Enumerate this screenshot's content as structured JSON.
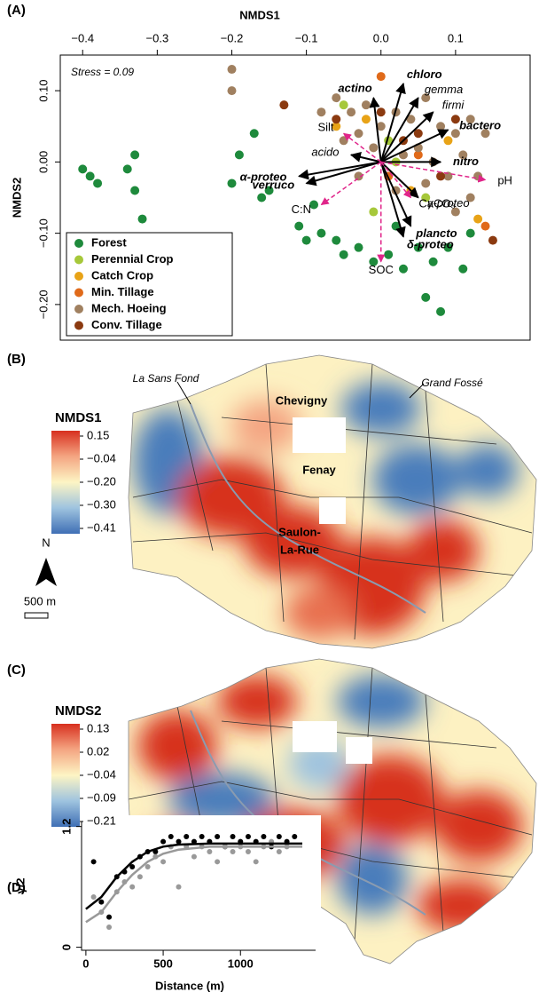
{
  "chart_data": [
    {
      "type": "scatter",
      "panel": "(A)",
      "xlabel": "NMDS1",
      "ylabel": "NMDS2",
      "annotation": "Stress = 0.09",
      "xlim": [
        -0.43,
        0.2
      ],
      "ylim": [
        -0.25,
        0.15
      ],
      "xticks": [
        {
          "value": -0.4,
          "label": "−0.4"
        },
        {
          "value": -0.3,
          "label": "−0.3"
        },
        {
          "value": -0.2,
          "label": "−0.2"
        },
        {
          "value": -0.1,
          "label": "−0.1"
        },
        {
          "value": 0,
          "label": "0.0"
        },
        {
          "value": 0.1,
          "label": "0.1"
        }
      ],
      "yticks": [
        {
          "value": 0.1,
          "label": "0.10"
        },
        {
          "value": 0,
          "label": "0.00"
        },
        {
          "value": -0.1,
          "label": "−0.10"
        },
        {
          "value": -0.2,
          "label": "−0.20"
        }
      ],
      "legend": "bottom-left",
      "series": [
        {
          "name": "Forest",
          "color": "#1e8a3c",
          "x": [
            -0.4,
            -0.39,
            -0.38,
            -0.34,
            -0.33,
            -0.33,
            -0.32,
            -0.2,
            -0.19,
            -0.17,
            -0.16,
            -0.15,
            -0.11,
            -0.09,
            -0.08,
            -0.06,
            -0.05,
            -0.03,
            -0.01,
            0.01,
            0.03,
            0.05,
            0.07,
            0.09,
            0.11,
            0.12,
            0.06,
            0.08,
            -0.1,
            0.02
          ],
          "y": [
            -0.01,
            -0.02,
            -0.03,
            -0.01,
            0.01,
            -0.04,
            -0.08,
            -0.03,
            0.01,
            0.04,
            -0.05,
            -0.04,
            -0.09,
            -0.06,
            -0.1,
            -0.11,
            -0.13,
            -0.12,
            -0.14,
            -0.13,
            -0.15,
            -0.12,
            -0.14,
            -0.12,
            -0.15,
            -0.1,
            -0.19,
            -0.21,
            -0.11,
            -0.09
          ]
        },
        {
          "name": "Perennial Crop",
          "color": "#a6c83a",
          "x": [
            -0.05,
            0.01,
            0.06,
            -0.01,
            0.02
          ],
          "y": [
            0.08,
            0.03,
            -0.05,
            -0.07,
            0.0
          ]
        },
        {
          "name": "Catch Crop",
          "color": "#e8a317",
          "x": [
            -0.02,
            0.04,
            0.13,
            -0.06,
            0.09
          ],
          "y": [
            0.06,
            -0.04,
            -0.08,
            0.05,
            0.03
          ]
        },
        {
          "name": "Min. Tillage",
          "color": "#e06a1a",
          "x": [
            0.0,
            0.01,
            0.05,
            0.14
          ],
          "y": [
            0.12,
            -0.02,
            0.01,
            -0.09
          ]
        },
        {
          "name": "Mech. Hoeing",
          "color": "#a08060",
          "x": [
            -0.2,
            -0.2,
            -0.08,
            -0.06,
            -0.04,
            -0.03,
            -0.02,
            0.0,
            0.02,
            0.04,
            0.06,
            0.08,
            0.1,
            0.12,
            0.14,
            0.05,
            0.03,
            -0.01,
            0.07,
            0.09,
            0.11,
            0.13,
            -0.05,
            0.06,
            0.1,
            0.12,
            0.02,
            -0.03
          ],
          "y": [
            0.13,
            0.1,
            0.07,
            0.09,
            0.07,
            0.04,
            0.08,
            0.05,
            0.07,
            0.06,
            0.09,
            0.05,
            0.04,
            0.06,
            0.04,
            0.02,
            0.01,
            0.02,
            0.0,
            -0.02,
            0.01,
            -0.02,
            0.03,
            -0.03,
            -0.07,
            -0.05,
            -0.04,
            -0.02
          ]
        },
        {
          "name": "Conv. Tillage",
          "color": "#8b3a10",
          "x": [
            -0.13,
            -0.06,
            0.0,
            0.05,
            0.1,
            0.08,
            0.15,
            0.03
          ],
          "y": [
            0.08,
            0.06,
            0.07,
            0.04,
            0.06,
            -0.02,
            -0.11,
            0.03
          ]
        }
      ],
      "vectors": [
        {
          "label": "chloro",
          "x": 0.03,
          "y": 0.11,
          "color": "#000000",
          "style": "solid",
          "bold": true
        },
        {
          "label": "actino",
          "x": -0.01,
          "y": 0.09,
          "color": "#000000",
          "style": "solid",
          "bold": true
        },
        {
          "label": "gemma",
          "x": 0.05,
          "y": 0.09,
          "color": "#000000",
          "style": "solid",
          "bold": false
        },
        {
          "label": "firmi",
          "x": 0.07,
          "y": 0.07,
          "color": "#000000",
          "style": "solid",
          "bold": false
        },
        {
          "label": "bactero",
          "x": 0.09,
          "y": 0.045,
          "color": "#000000",
          "style": "solid",
          "bold": true
        },
        {
          "label": "nitro",
          "x": 0.08,
          "y": 0.0,
          "color": "#000000",
          "style": "solid",
          "bold": true
        },
        {
          "label": "acido",
          "x": -0.04,
          "y": 0.01,
          "color": "#000000",
          "style": "solid",
          "bold": false
        },
        {
          "label": "α-proteo",
          "x": -0.11,
          "y": -0.02,
          "color": "#000000",
          "style": "solid",
          "bold": true
        },
        {
          "label": "verruco",
          "x": -0.1,
          "y": -0.03,
          "color": "#000000",
          "style": "solid",
          "bold": true
        },
        {
          "label": "γ-proteo",
          "x": 0.05,
          "y": -0.05,
          "color": "#000000",
          "style": "solid",
          "bold": false
        },
        {
          "label": "plancto",
          "x": 0.04,
          "y": -0.09,
          "color": "#000000",
          "style": "solid",
          "bold": true
        },
        {
          "label": "δ-proteo",
          "x": 0.03,
          "y": -0.105,
          "color": "#000000",
          "style": "solid",
          "bold": true
        },
        {
          "label": "Silt",
          "x": -0.05,
          "y": 0.04,
          "color": "#e0258a",
          "style": "dashed",
          "bold": false
        },
        {
          "label": "pH",
          "x": 0.14,
          "y": -0.025,
          "color": "#e0258a",
          "style": "dashed",
          "bold": false
        },
        {
          "label": "C:N",
          "x": -0.08,
          "y": -0.06,
          "color": "#e0258a",
          "style": "dashed",
          "bold": false
        },
        {
          "label": "SOC",
          "x": 0.0,
          "y": -0.14,
          "color": "#e0258a",
          "style": "dashed",
          "bold": false
        },
        {
          "label": "CaCO₃",
          "x": 0.04,
          "y": -0.05,
          "color": "#e0258a",
          "style": "dashed",
          "bold": false
        }
      ]
    },
    {
      "type": "map",
      "panel": "(B)",
      "title": "NMDS1",
      "colors": [
        "#d7301f",
        "#f4a582",
        "#fdf5c4",
        "#9ec3df",
        "#3f6fb5"
      ],
      "ticks": [
        {
          "value": 0.15,
          "label": "0.15"
        },
        {
          "value": -0.04,
          "label": "−0.04"
        },
        {
          "value": -0.2,
          "label": "−0.20"
        },
        {
          "value": -0.3,
          "label": "−0.30"
        },
        {
          "value": -0.41,
          "label": "−0.41"
        }
      ],
      "places": [
        "La Sans Fond",
        "Grand Fossé",
        "Chevigny",
        "Fenay",
        "Saulon-",
        "La-Rue"
      ],
      "north": "N",
      "scale": "500 m"
    },
    {
      "type": "map",
      "panel": "(C)",
      "title": "NMDS2",
      "colors": [
        "#d7301f",
        "#f4a582",
        "#fdf5c4",
        "#9ec3df",
        "#3f6fb5"
      ],
      "ticks": [
        {
          "value": 0.13,
          "label": "0.13"
        },
        {
          "value": 0.02,
          "label": "0.02"
        },
        {
          "value": -0.04,
          "label": "−0.04"
        },
        {
          "value": -0.09,
          "label": "−0.09"
        },
        {
          "value": -0.21,
          "label": "−0.21"
        }
      ]
    },
    {
      "type": "variogram",
      "panel": "(D)",
      "xlabel": "Distance (m)",
      "ylabel": "γ/2",
      "xlim": [
        -28,
        1486
      ],
      "ylim": [
        -0.03,
        1.25
      ],
      "xticks": [
        0,
        500,
        1000
      ],
      "yticks": [
        0,
        1.2
      ],
      "series": [
        {
          "color": "#000000",
          "style": "points",
          "x": [
            50,
            100,
            150,
            200,
            250,
            300,
            350,
            400,
            450,
            500,
            550,
            600,
            650,
            700,
            750,
            800,
            850,
            900,
            950,
            1000,
            1050,
            1100,
            1150,
            1200,
            1250,
            1300,
            1350
          ],
          "values": [
            0.85,
            0.45,
            0.3,
            0.7,
            0.75,
            0.8,
            0.9,
            0.95,
            0.95,
            1.05,
            1.1,
            1.05,
            1.1,
            1.05,
            1.1,
            1.05,
            1.1,
            1.0,
            1.1,
            1.05,
            1.1,
            1.05,
            1.1,
            1.0,
            1.1,
            1.05,
            1.1
          ]
        },
        {
          "color": "#999999",
          "style": "points",
          "x": [
            50,
            100,
            150,
            200,
            250,
            300,
            350,
            400,
            450,
            500,
            550,
            600,
            650,
            700,
            750,
            800,
            850,
            900,
            950,
            1000,
            1050,
            1100,
            1150,
            1200,
            1250,
            1300
          ],
          "values": [
            0.5,
            0.35,
            0.2,
            0.55,
            0.65,
            0.6,
            0.7,
            0.8,
            0.9,
            0.85,
            1.0,
            0.6,
            1.0,
            0.9,
            1.0,
            0.95,
            0.85,
            1.0,
            0.95,
            1.0,
            0.95,
            0.85,
            1.0,
            1.05,
            0.95,
            1.0
          ]
        },
        {
          "color": "#000000",
          "style": "line",
          "x": [
            0,
            100,
            200,
            300,
            400,
            500,
            600,
            800,
            1000,
            1200,
            1400
          ],
          "values": [
            0.38,
            0.5,
            0.7,
            0.85,
            0.95,
            1.0,
            1.02,
            1.03,
            1.03,
            1.03,
            1.03
          ]
        },
        {
          "color": "#999999",
          "style": "line",
          "x": [
            0,
            100,
            200,
            300,
            400,
            500,
            600,
            800,
            1000,
            1200,
            1400
          ],
          "values": [
            0.25,
            0.35,
            0.55,
            0.72,
            0.85,
            0.93,
            0.97,
            1.0,
            1.0,
            1.0,
            1.0
          ]
        }
      ]
    }
  ]
}
